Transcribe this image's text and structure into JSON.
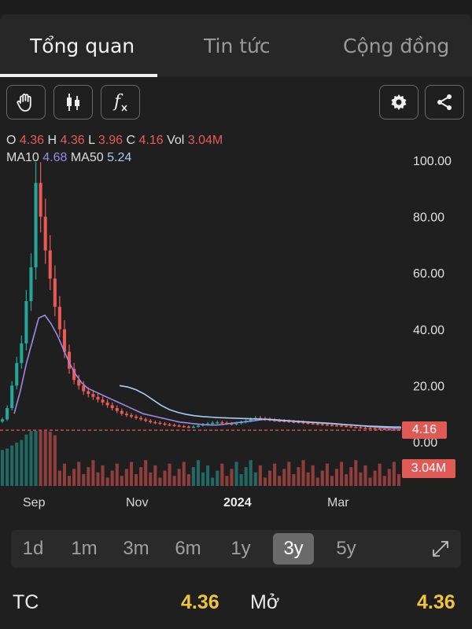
{
  "tabs": [
    {
      "label": "Tổng quan",
      "active": true
    },
    {
      "label": "Tin tức",
      "active": false
    },
    {
      "label": "Cộng đồng",
      "active": false
    }
  ],
  "toolbar": {
    "left_icons": [
      "hand-icon",
      "candlestick-icon",
      "function-icon"
    ],
    "right_icons": [
      "gear-icon",
      "share-icon"
    ],
    "fx_glyph": "f"
  },
  "readout": {
    "o_label": "O",
    "o": "4.36",
    "h_label": "H",
    "h": "4.36",
    "l_label": "L",
    "l": "3.96",
    "c_label": "C",
    "c": "4.16",
    "vol_label": "Vol",
    "vol": "3.04M",
    "ma10_label": "MA10",
    "ma10": "4.68",
    "ma50_label": "MA50",
    "ma50": "5.24"
  },
  "colors": {
    "up": "#26a69a",
    "down": "#ea5a55",
    "ma10": "#9b8ae6",
    "ma50": "#a8cdf0",
    "highlight": "#f0c43d"
  },
  "chart_data": {
    "type": "candlestick",
    "ylim": [
      0,
      100
    ],
    "y_ticks": [
      "100.00",
      "80.00",
      "60.00",
      "40.00",
      "20.00",
      "0.00"
    ],
    "y_tick_values": [
      100,
      80,
      60,
      40,
      20,
      0
    ],
    "x_labels": [
      "Sep",
      "Nov",
      "2024",
      "Mar"
    ],
    "last_price": "4.16",
    "last_price_value": 4.16,
    "last_volume": "3.04M",
    "close": [
      8,
      12,
      20,
      28,
      35,
      50,
      62,
      92,
      80,
      68,
      58,
      48,
      40,
      32,
      26,
      22,
      20,
      18,
      17,
      16,
      15,
      14,
      13,
      12,
      11,
      10,
      9.5,
      9,
      8.5,
      8,
      7.5,
      7,
      6.8,
      6.5,
      6.2,
      6,
      5.8,
      5.6,
      5.4,
      5.2,
      5.4,
      5.8,
      6.2,
      6.5,
      6.8,
      7,
      6.8,
      6.5,
      6.3,
      6.6,
      7,
      7.5,
      8,
      8.5,
      8.3,
      8,
      7.8,
      7.6,
      7.5,
      7.4,
      7.2,
      7.1,
      7,
      6.8,
      6.6,
      6.5,
      6.3,
      6.2,
      6.0,
      5.9,
      5.8,
      5.7,
      5.5,
      5.3,
      5.2,
      5.0,
      4.9,
      4.8,
      4.7,
      4.6,
      4.5,
      4.4,
      4.36,
      4.16
    ],
    "ma10": [
      10,
      18,
      28,
      36,
      44,
      45,
      42,
      38,
      33,
      28,
      24,
      21,
      19,
      18,
      17,
      16,
      15,
      14,
      13,
      12,
      11,
      10,
      9.5,
      9,
      8.5,
      8,
      7.5,
      7,
      6.8,
      6.5,
      6.3,
      6.1,
      6,
      6,
      6.2,
      6.5,
      6.8,
      7,
      7.2,
      7.5,
      7.8,
      8,
      7.8,
      7.6,
      7.5,
      7.4,
      7.2,
      7.1,
      7,
      6.9,
      6.8,
      6.7,
      6.5,
      6.3,
      6.1,
      6,
      5.8,
      5.6,
      5.4,
      5.2,
      5.0,
      4.9,
      4.8,
      4.68
    ],
    "ma50": [
      20,
      19.5,
      18.5,
      17,
      15,
      13,
      11.5,
      10.5,
      9.8,
      9.3,
      9,
      8.8,
      8.6,
      8.5,
      8.4,
      8.3,
      8.2,
      8.1,
      8,
      7.8,
      7.6,
      7.4,
      7.2,
      7,
      6.8,
      6.6,
      6.4,
      6.2,
      6,
      5.8,
      5.6,
      5.5,
      5.4,
      5.3,
      5.24
    ]
  },
  "ranges": [
    {
      "label": "1d",
      "active": false
    },
    {
      "label": "1m",
      "active": false
    },
    {
      "label": "3m",
      "active": false
    },
    {
      "label": "6m",
      "active": false
    },
    {
      "label": "1y",
      "active": false
    },
    {
      "label": "3y",
      "active": true
    },
    {
      "label": "5y",
      "active": false
    }
  ],
  "expand_icon": "expand-icon",
  "stats": {
    "tc_label": "TC",
    "tc_value": "4.36",
    "open_label": "Mở",
    "open_value": "4.36"
  }
}
